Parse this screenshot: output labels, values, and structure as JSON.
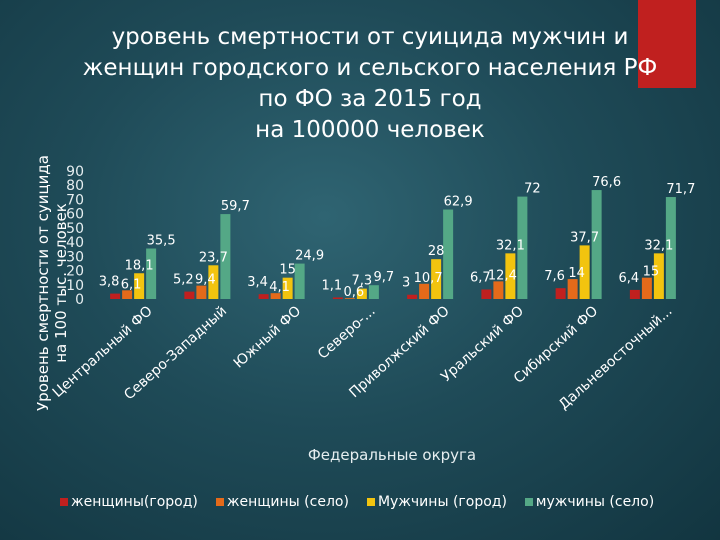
{
  "title_lines": [
    "уровень смертности от суицида мужчин и",
    "женщин городского и сельского населения РФ",
    "по ФО за 2015 год",
    "на 100000 человек"
  ],
  "chart_data": {
    "type": "bar",
    "title": "уровень смертности от суицида мужчин и женщин городского и сельского населения РФ по ФО за 2015 год на 100000 человек",
    "categories": [
      "Центральный ФО",
      "Северо-Западный",
      "Южный ФО",
      "Северо-...",
      "Приволжский ФО",
      "Уральский ФО",
      "Сибирский ФО",
      "Дальневосточный..."
    ],
    "series": [
      {
        "name": "женщины(город)",
        "color": "#c0201f",
        "values": [
          3.8,
          5.2,
          3.4,
          1.1,
          3,
          6.7,
          7.6,
          6.4
        ],
        "labels": [
          "3,8",
          "5,2",
          "3,4",
          "1,1",
          "3",
          "6,7",
          "7,6",
          "6,4"
        ]
      },
      {
        "name": "женщины (село)",
        "color": "#e46a1a",
        "values": [
          6.1,
          9.4,
          4.1,
          0.6,
          10.7,
          12.4,
          14,
          15
        ],
        "labels": [
          "6,1",
          "9,4",
          "4,1",
          "0,6",
          "10,7",
          "12,4",
          "14",
          "15"
        ]
      },
      {
        "name": "Мужчины (город)",
        "color": "#f2c40f",
        "values": [
          18.1,
          23.7,
          15,
          7.3,
          28,
          32.1,
          37.7,
          32.1
        ],
        "labels": [
          "18,1",
          "23,7",
          "15",
          "7,3",
          "28",
          "32,1",
          "37,7",
          "32,1"
        ]
      },
      {
        "name": "мужчины (село)",
        "color": "#54a886",
        "values": [
          35.5,
          59.7,
          24.9,
          9.7,
          62.9,
          72,
          76.6,
          71.7
        ],
        "labels": [
          "35,5",
          "59,7",
          "24,9",
          "9,7",
          "62,9",
          "72",
          "76,6",
          "71,7"
        ]
      }
    ],
    "xlabel": "Федеральные округа",
    "ylabel": "Уровень смертности от суицида на 100 тыс. человек",
    "ylabel_lines": [
      "Уровень смертности от суицида",
      "на 100 тыс. человек"
    ],
    "ylim": [
      0,
      90
    ],
    "yticks": [
      0,
      10,
      20,
      30,
      40,
      50,
      60,
      70,
      80,
      90
    ],
    "grid": false,
    "legend_position": "bottom"
  }
}
